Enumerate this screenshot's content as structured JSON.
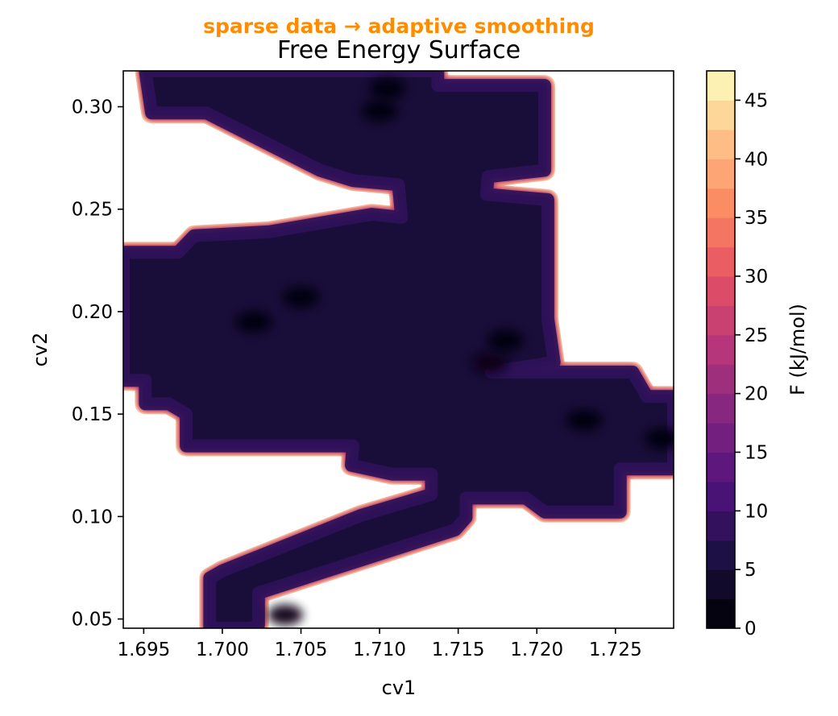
{
  "chart_data": {
    "type": "heatmap",
    "subtitle": "sparse data → adaptive smoothing",
    "subtitle_color": "#ff8c00",
    "title": "Free Energy Surface",
    "xlabel": "cv1",
    "ylabel": "cv2",
    "xlim": [
      1.6937,
      1.7287
    ],
    "ylim": [
      0.0455,
      0.3175
    ],
    "x_ticks": [
      "1.695",
      "1.700",
      "1.705",
      "1.710",
      "1.715",
      "1.720",
      "1.725"
    ],
    "x_tick_values": [
      1.695,
      1.7,
      1.705,
      1.71,
      1.715,
      1.72,
      1.725
    ],
    "y_ticks": [
      "0.05",
      "0.10",
      "0.15",
      "0.20",
      "0.25",
      "0.30"
    ],
    "y_tick_values": [
      0.05,
      0.1,
      0.15,
      0.2,
      0.25,
      0.3
    ],
    "colorbar": {
      "label": "F (kJ/mol)",
      "colormap": "magma",
      "range": [
        0,
        47.5
      ],
      "level_step": 2.5,
      "ticks": [
        "0",
        "5",
        "10",
        "15",
        "20",
        "25",
        "30",
        "35",
        "40",
        "45"
      ],
      "tick_values": [
        0,
        5,
        10,
        15,
        20,
        25,
        30,
        35,
        40,
        45
      ]
    },
    "valid_region": [
      [
        1.6951,
        0.3175
      ],
      [
        1.7137,
        0.3175
      ],
      [
        1.7137,
        0.3104
      ],
      [
        1.7205,
        0.3104
      ],
      [
        1.7205,
        0.269
      ],
      [
        1.7169,
        0.2659
      ],
      [
        1.7168,
        0.2572
      ],
      [
        1.7207,
        0.2546
      ],
      [
        1.7207,
        0.1965
      ],
      [
        1.7211,
        0.1753
      ],
      [
        1.7171,
        0.1705
      ],
      [
        1.7261,
        0.1705
      ],
      [
        1.727,
        0.1586
      ],
      [
        1.7287,
        0.1586
      ],
      [
        1.7287,
        0.1232
      ],
      [
        1.7253,
        0.1232
      ],
      [
        1.7253,
        0.1022
      ],
      [
        1.7205,
        0.1022
      ],
      [
        1.7193,
        0.109
      ],
      [
        1.7155,
        0.109
      ],
      [
        1.7155,
        0.0995
      ],
      [
        1.7148,
        0.0935
      ],
      [
        1.7023,
        0.0627
      ],
      [
        1.7023,
        0.047
      ],
      [
        1.7018,
        0.0455
      ],
      [
        1.6992,
        0.0455
      ],
      [
        1.6992,
        0.07
      ],
      [
        1.7,
        0.0735
      ],
      [
        1.7088,
        0.1005
      ],
      [
        1.7133,
        0.1108
      ],
      [
        1.7133,
        0.1207
      ],
      [
        1.7108,
        0.1207
      ],
      [
        1.7082,
        0.125
      ],
      [
        1.7083,
        0.1345
      ],
      [
        1.6977,
        0.1345
      ],
      [
        1.6977,
        0.15
      ],
      [
        1.6966,
        0.155
      ],
      [
        1.6951,
        0.155
      ],
      [
        1.6951,
        0.1665
      ],
      [
        1.6937,
        0.1665
      ],
      [
        1.6937,
        0.229
      ],
      [
        1.6972,
        0.229
      ],
      [
        1.6982,
        0.237
      ],
      [
        1.703,
        0.239
      ],
      [
        1.7095,
        0.2475
      ],
      [
        1.7114,
        0.246
      ],
      [
        1.7112,
        0.262
      ],
      [
        1.7083,
        0.264
      ],
      [
        1.7062,
        0.269
      ],
      [
        1.699,
        0.297
      ],
      [
        1.6955,
        0.297
      ],
      [
        1.6951,
        0.3175
      ]
    ],
    "low_basins": [
      {
        "x": 1.7105,
        "y": 0.309,
        "F": 1
      },
      {
        "x": 1.71,
        "y": 0.298,
        "F": 0.5
      },
      {
        "x": 1.705,
        "y": 0.207,
        "F": 0.5
      },
      {
        "x": 1.702,
        "y": 0.195,
        "F": 1
      },
      {
        "x": 1.718,
        "y": 0.186,
        "F": 0.5
      },
      {
        "x": 1.717,
        "y": 0.175,
        "F": 2
      },
      {
        "x": 1.723,
        "y": 0.147,
        "F": 1
      },
      {
        "x": 1.728,
        "y": 0.138,
        "F": 1
      },
      {
        "x": 1.704,
        "y": 0.052,
        "F": 2
      }
    ]
  }
}
